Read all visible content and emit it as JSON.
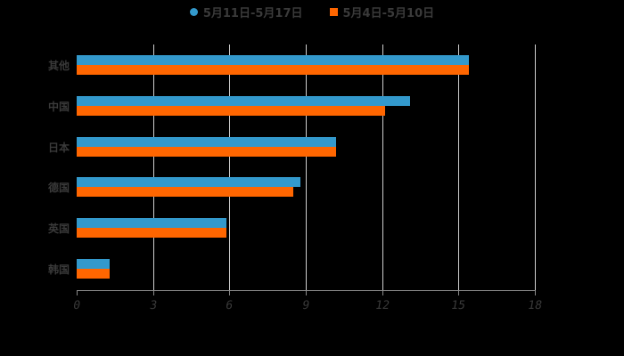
{
  "legend": [
    {
      "label": "5月11日-5月17日",
      "color": "#3399cc",
      "shape": "circle"
    },
    {
      "label": "5月4日-5月10日",
      "color": "#ff6600",
      "shape": "square"
    }
  ],
  "chart_data": {
    "type": "bar",
    "orientation": "horizontal",
    "title": "",
    "xlabel": "",
    "ylabel": "",
    "categories": [
      "其他",
      "中国",
      "日本",
      "德国",
      "英国",
      "韩国"
    ],
    "series": [
      {
        "name": "5月11日-5月17日",
        "color": "#3399cc",
        "values": [
          15.4,
          13.1,
          10.2,
          8.8,
          5.9,
          1.3
        ]
      },
      {
        "name": "5月4日-5月10日",
        "color": "#ff6600",
        "values": [
          15.4,
          12.1,
          10.2,
          8.5,
          5.9,
          1.3
        ]
      }
    ],
    "xlim": [
      0,
      18
    ],
    "xticks": [
      "0",
      "3",
      "6",
      "9",
      "12",
      "15",
      "18"
    ],
    "grid": true,
    "legend_position": "top"
  }
}
